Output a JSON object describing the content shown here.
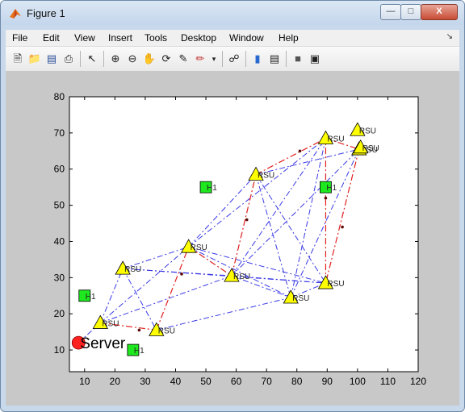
{
  "window": {
    "title": "Figure 1",
    "min_icon": "minimize-icon",
    "max_icon": "maximize-icon",
    "close_icon": "close-icon"
  },
  "menubar": {
    "items": [
      "File",
      "Edit",
      "View",
      "Insert",
      "Tools",
      "Desktop",
      "Window",
      "Help"
    ]
  },
  "toolbar": {
    "icons": [
      "new-figure-icon",
      "open-file-icon",
      "save-icon",
      "print-icon",
      "edit-plot-icon",
      "zoom-in-icon",
      "zoom-out-icon",
      "pan-icon",
      "rotate-3d-icon",
      "data-cursor-icon",
      "brush-icon",
      "link-plot-icon",
      "colorbar-icon",
      "legend-icon",
      "hide-plot-tools-icon",
      "show-plot-tools-icon"
    ]
  },
  "chart_data": {
    "type": "scatter",
    "xlim": [
      5,
      120
    ],
    "ylim": [
      4,
      80
    ],
    "xticks": [
      "10",
      "20",
      "30",
      "40",
      "50",
      "60",
      "70",
      "80",
      "90",
      "100",
      "110",
      "120"
    ],
    "yticks": [
      "10",
      "20",
      "30",
      "40",
      "50",
      "60",
      "70",
      "80"
    ],
    "grid": false,
    "rsu_nodes": [
      {
        "x": 15.2,
        "y": 17.5,
        "label": "RSU"
      },
      {
        "x": 22.6,
        "y": 32.5,
        "label": "RSU"
      },
      {
        "x": 33.7,
        "y": 15.5,
        "label": "RSU"
      },
      {
        "x": 44.3,
        "y": 38.5,
        "label": "RSU"
      },
      {
        "x": 58.5,
        "y": 30.5,
        "label": "RSU"
      },
      {
        "x": 66.5,
        "y": 58.5,
        "label": "RSU"
      },
      {
        "x": 78.0,
        "y": 24.5,
        "label": "RSU"
      },
      {
        "x": 89.5,
        "y": 28.5,
        "label": "RSU"
      },
      {
        "x": 89.5,
        "y": 68.5,
        "label": "RSU"
      },
      {
        "x": 100.5,
        "y": 65.5,
        "label": "RSU"
      }
    ],
    "extra_rsu": [
      {
        "x": 100.0,
        "y": 70.8,
        "label": "RSU"
      },
      {
        "x": 101.0,
        "y": 66.0,
        "label": "RSU"
      }
    ],
    "h_nodes": [
      {
        "x": 10.0,
        "y": 25.0,
        "label": "H1"
      },
      {
        "x": 26.0,
        "y": 10.0,
        "label": "H1"
      },
      {
        "x": 50.0,
        "y": 55.0,
        "label": "H1"
      },
      {
        "x": 89.5,
        "y": 55.0,
        "label": "H1"
      }
    ],
    "server": {
      "x": 8.0,
      "y": 12.0,
      "label": "Server"
    },
    "red_path": [
      [
        15.2,
        17.5
      ],
      [
        33.7,
        15.5
      ],
      [
        44.3,
        38.5
      ],
      [
        58.5,
        30.5
      ],
      [
        66.5,
        58.5
      ],
      [
        89.5,
        68.5
      ],
      [
        100.5,
        65.5
      ],
      [
        89.5,
        28.5
      ],
      [
        89.5,
        68.5
      ]
    ],
    "red_midpoints": [
      [
        28.0,
        15.5
      ],
      [
        42.0,
        31.0
      ],
      [
        63.5,
        46.0
      ],
      [
        81.0,
        65.0
      ],
      [
        89.5,
        52.0
      ],
      [
        95.0,
        44.0
      ]
    ],
    "blue_edges": [
      [
        [
          15.2,
          17.5
        ],
        [
          22.6,
          32.5
        ]
      ],
      [
        [
          15.2,
          17.5
        ],
        [
          44.3,
          38.5
        ]
      ],
      [
        [
          15.2,
          17.5
        ],
        [
          58.5,
          30.5
        ]
      ],
      [
        [
          22.6,
          32.5
        ],
        [
          33.7,
          15.5
        ]
      ],
      [
        [
          22.6,
          32.5
        ],
        [
          44.3,
          38.5
        ]
      ],
      [
        [
          22.6,
          32.5
        ],
        [
          58.5,
          30.5
        ]
      ],
      [
        [
          22.6,
          32.5
        ],
        [
          89.5,
          28.5
        ]
      ],
      [
        [
          33.7,
          15.5
        ],
        [
          78.0,
          24.5
        ]
      ],
      [
        [
          44.3,
          38.5
        ],
        [
          66.5,
          58.5
        ]
      ],
      [
        [
          44.3,
          38.5
        ],
        [
          78.0,
          24.5
        ]
      ],
      [
        [
          44.3,
          38.5
        ],
        [
          89.5,
          28.5
        ]
      ],
      [
        [
          44.3,
          38.5
        ],
        [
          89.5,
          68.5
        ]
      ],
      [
        [
          58.5,
          30.5
        ],
        [
          78.0,
          24.5
        ]
      ],
      [
        [
          58.5,
          30.5
        ],
        [
          89.5,
          28.5
        ]
      ],
      [
        [
          58.5,
          30.5
        ],
        [
          89.5,
          68.5
        ]
      ],
      [
        [
          58.5,
          30.5
        ],
        [
          100.5,
          65.5
        ]
      ],
      [
        [
          66.5,
          58.5
        ],
        [
          78.0,
          24.5
        ]
      ],
      [
        [
          66.5,
          58.5
        ],
        [
          89.5,
          28.5
        ]
      ],
      [
        [
          66.5,
          58.5
        ],
        [
          100.5,
          65.5
        ]
      ],
      [
        [
          78.0,
          24.5
        ],
        [
          89.5,
          68.5
        ]
      ],
      [
        [
          78.0,
          24.5
        ],
        [
          100.5,
          65.5
        ]
      ],
      [
        [
          78.0,
          24.5
        ],
        [
          89.5,
          28.5
        ]
      ],
      [
        [
          8.0,
          12.0
        ],
        [
          15.2,
          17.5
        ]
      ]
    ],
    "colors": {
      "rsu_fill": "#ffff00",
      "h_fill": "#1ee81e",
      "server_fill": "#ff2020",
      "red_line": "#e02020",
      "blue_line": "#3a3ae6"
    }
  }
}
